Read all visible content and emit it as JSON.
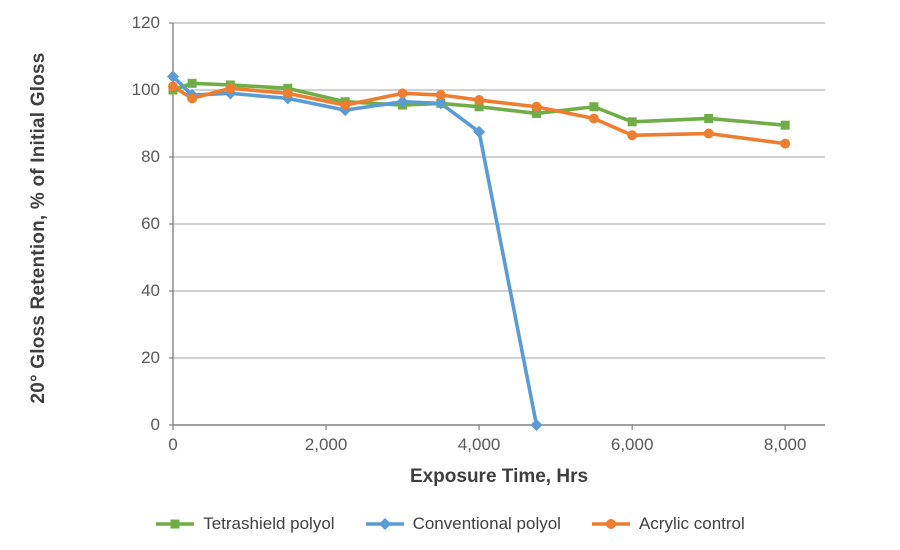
{
  "figure": {
    "background": "#ffffff",
    "axis_color": "#808080",
    "grid_color": "#b3b3b3",
    "tick_label_color": "#595959",
    "title_color": "#3f3f3f"
  },
  "chart_data": {
    "type": "line",
    "title": "",
    "xlabel": "Exposure Time, Hrs",
    "ylabel": "20° Gloss Retention, % of Initial Gloss",
    "xlim": [
      0,
      8520
    ],
    "ylim": [
      0,
      120
    ],
    "grid": "horizontal",
    "legend_position": "bottom",
    "x_ticks": [
      {
        "value": 0,
        "label": "0"
      },
      {
        "value": 2000,
        "label": "2,000"
      },
      {
        "value": 4000,
        "label": "4,000"
      },
      {
        "value": 6000,
        "label": "6,000"
      },
      {
        "value": 8000,
        "label": "8,000"
      }
    ],
    "y_ticks": [
      {
        "value": 0,
        "label": "0"
      },
      {
        "value": 20,
        "label": "20"
      },
      {
        "value": 40,
        "label": "40"
      },
      {
        "value": 60,
        "label": "60"
      },
      {
        "value": 80,
        "label": "80"
      },
      {
        "value": 100,
        "label": "100"
      },
      {
        "value": 120,
        "label": "120"
      }
    ],
    "series": [
      {
        "name": "Tetrashield polyol",
        "color": "#70AD47",
        "marker": "square",
        "points": [
          [
            0,
            100
          ],
          [
            250,
            102
          ],
          [
            750,
            101.5
          ],
          [
            1500,
            100.5
          ],
          [
            2250,
            96.5
          ],
          [
            3000,
            95.5
          ],
          [
            3500,
            96
          ],
          [
            4000,
            95
          ],
          [
            4750,
            93
          ],
          [
            5500,
            95
          ],
          [
            6000,
            90.5
          ],
          [
            7000,
            91.5
          ],
          [
            8000,
            89.5
          ]
        ]
      },
      {
        "name": "Conventional polyol",
        "color": "#5B9BD5",
        "marker": "diamond",
        "points": [
          [
            0,
            104
          ],
          [
            250,
            98.5
          ],
          [
            750,
            99
          ],
          [
            1500,
            97.5
          ],
          [
            2250,
            94
          ],
          [
            3000,
            96.5
          ],
          [
            3500,
            96
          ],
          [
            4000,
            87.5
          ],
          [
            4750,
            0
          ]
        ]
      },
      {
        "name": "Acrylic control",
        "color": "#ED7D31",
        "marker": "circle",
        "points": [
          [
            0,
            101
          ],
          [
            250,
            97.5
          ],
          [
            750,
            100.5
          ],
          [
            1500,
            99
          ],
          [
            2250,
            95.5
          ],
          [
            3000,
            99
          ],
          [
            3500,
            98.5
          ],
          [
            4000,
            97
          ],
          [
            4750,
            95
          ],
          [
            5500,
            91.5
          ],
          [
            6000,
            86.5
          ],
          [
            7000,
            87
          ],
          [
            8000,
            84
          ]
        ]
      }
    ]
  }
}
